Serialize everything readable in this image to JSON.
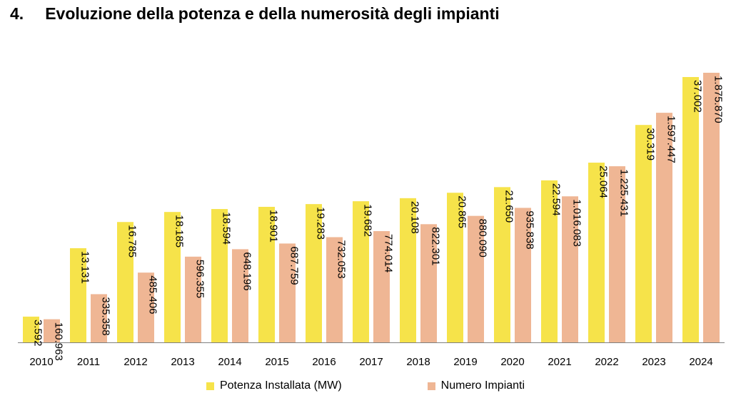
{
  "header": {
    "number": "4.",
    "title": "Evoluzione della potenza e della numerosità degli impianti"
  },
  "colors": {
    "potenza": "#F6E34A",
    "impianti": "#EFB694",
    "axis": "#7f7f7f"
  },
  "chart_data": {
    "type": "bar",
    "categories": [
      "2010",
      "2011",
      "2012",
      "2013",
      "2014",
      "2015",
      "2016",
      "2017",
      "2018",
      "2019",
      "2020",
      "2021",
      "2022",
      "2023",
      "2024"
    ],
    "series": [
      {
        "name": "Potenza Installata (MW)",
        "values": [
          3592,
          13131,
          16785,
          18185,
          18594,
          18901,
          19283,
          19682,
          20108,
          20865,
          21650,
          22594,
          25064,
          30319,
          37002
        ],
        "labels": [
          "3.592",
          "13.131",
          "16.785",
          "18.185",
          "18.594",
          "18.901",
          "19.283",
          "19.682",
          "20.108",
          "20.865",
          "21.650",
          "22.594",
          "25.064",
          "30.319",
          "37.002"
        ]
      },
      {
        "name": "Numero Impianti",
        "values": [
          160963,
          335358,
          485406,
          596355,
          648196,
          687759,
          732053,
          774014,
          822301,
          880090,
          935838,
          1016083,
          1225431,
          1597447,
          1875870
        ],
        "labels": [
          "160.963",
          "335.358",
          "485.406",
          "596.355",
          "648.196",
          "687.759",
          "732.053",
          "774.014",
          "822.301",
          "880.090",
          "935.838",
          "1.016.083",
          "1.225.431",
          "1.597.447",
          "1.875.870"
        ]
      }
    ],
    "legend_position": "bottom",
    "grid": false
  }
}
